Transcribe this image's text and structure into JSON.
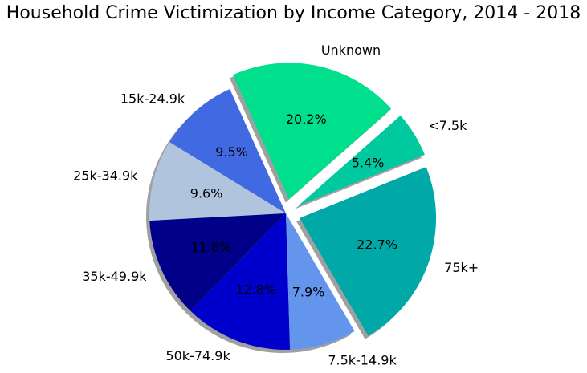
{
  "chart_data": {
    "type": "pie",
    "title": "Household Crime Victimization by Income Category, 2014 - 2018",
    "slices": [
      {
        "label": "<7.5k",
        "value": 5.4,
        "pct_label": "5.4%",
        "color": "#00c9a0",
        "explode": true
      },
      {
        "label": "Unknown",
        "value": 20.2,
        "pct_label": "20.2%",
        "color": "#00e08c",
        "explode": true
      },
      {
        "label": "15k-24.9k",
        "value": 9.5,
        "pct_label": "9.5%",
        "color": "#4169e1",
        "explode": false
      },
      {
        "label": "25k-34.9k",
        "value": 9.6,
        "pct_label": "9.6%",
        "color": "#b0c4de",
        "explode": false
      },
      {
        "label": "35k-49.9k",
        "value": 11.8,
        "pct_label": "11.8%",
        "color": "#000088",
        "explode": false
      },
      {
        "label": "50k-74.9k",
        "value": 12.8,
        "pct_label": "12.8%",
        "color": "#0000cd",
        "explode": false
      },
      {
        "label": "7.5k-14.9k",
        "value": 7.9,
        "pct_label": "7.9%",
        "color": "#6495ed",
        "explode": false
      },
      {
        "label": "75k+",
        "value": 22.7,
        "pct_label": "22.7%",
        "color": "#00a8a8",
        "explode": true
      }
    ],
    "start_angle_deg": 22,
    "direction": "counterclockwise",
    "shadow": true,
    "legend": "none"
  }
}
